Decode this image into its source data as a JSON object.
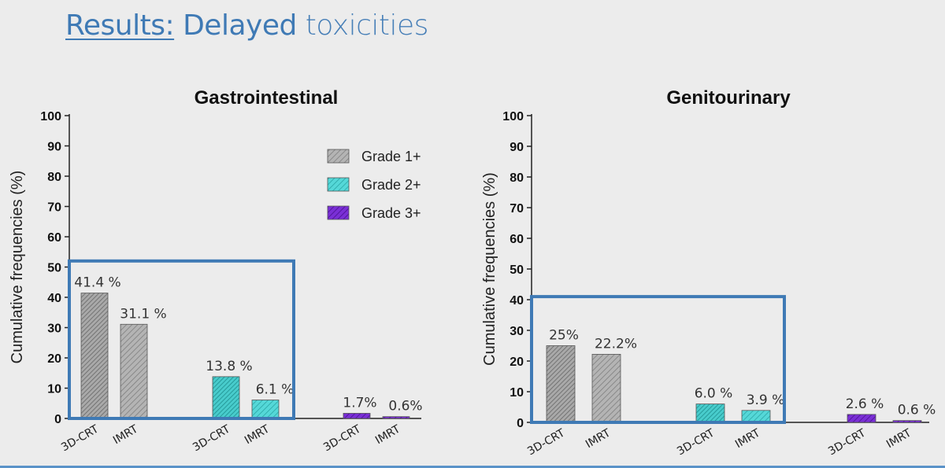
{
  "slide": {
    "title_results": "Results:",
    "title_delayed": "Delayed",
    "title_toxicities": "toxicities"
  },
  "colors": {
    "title": "#3f7ab5",
    "highlight_box": "#3f7ab5",
    "grade1": "#b4b4b4",
    "grade2": "#55d8d8",
    "grade3": "#7a2fd6"
  },
  "legend": {
    "items": [
      {
        "label": "Grade 1+",
        "color": "#b4b4b4"
      },
      {
        "label": "Grade 2+",
        "color": "#55d8d8"
      },
      {
        "label": "Grade 3+",
        "color": "#7a2fd6"
      }
    ]
  },
  "chart_data": [
    {
      "type": "bar",
      "title": "Gastrointestinal",
      "ylabel": "Cumulative frequencies (%)",
      "ylim": [
        0,
        100
      ],
      "yticks": [
        0,
        10,
        20,
        30,
        40,
        50,
        60,
        70,
        80,
        90,
        100
      ],
      "legend_position": "top-right",
      "categories": [
        "3D-CRT",
        "IMRT",
        "3D-CRT",
        "IMRT",
        "3D-CRT",
        "IMRT"
      ],
      "groups": [
        "Grade 1+",
        "Grade 2+",
        "Grade 3+"
      ],
      "values": [
        41.4,
        31.1,
        13.8,
        6.1,
        1.7,
        0.6
      ],
      "data_labels": [
        "41.4 %",
        "31.1 %",
        "13.8 %",
        "6.1 %",
        "1.7%",
        "0.6%"
      ],
      "highlight": {
        "from_bar": 0,
        "to_bar": 3,
        "top_value": 52
      }
    },
    {
      "type": "bar",
      "title": "Genitourinary",
      "ylabel": "Cumulative frequencies (%)",
      "ylim": [
        0,
        100
      ],
      "yticks": [
        0,
        10,
        20,
        30,
        40,
        50,
        60,
        70,
        80,
        90,
        100
      ],
      "categories": [
        "3D-CRT",
        "IMRT",
        "3D-CRT",
        "IMRT",
        "3D-CRT",
        "IMRT"
      ],
      "groups": [
        "Grade 1+",
        "Grade 2+",
        "Grade 3+"
      ],
      "values": [
        25,
        22.2,
        6.0,
        3.9,
        2.6,
        0.6
      ],
      "data_labels": [
        "25%",
        "22.2%",
        "6.0 %",
        "3.9 %",
        "2.6 %",
        "0.6 %"
      ],
      "highlight": {
        "from_bar": 0,
        "to_bar": 3,
        "top_value": 41
      }
    }
  ]
}
